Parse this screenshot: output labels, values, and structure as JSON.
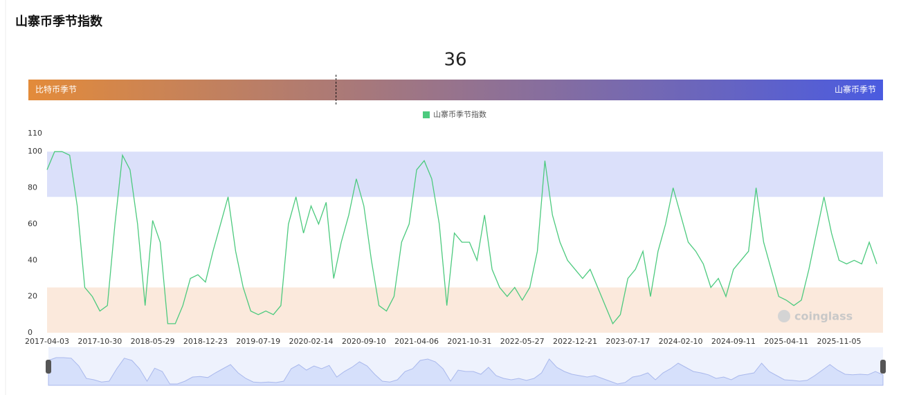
{
  "header": {
    "title": "山寨币季节指数"
  },
  "gauge": {
    "value": 36,
    "range": [
      0,
      100
    ],
    "min_label": "比特币季节",
    "max_label": "山寨币季节",
    "colors": [
      "#e38b3a",
      "#4a5be0"
    ]
  },
  "chart_data": {
    "type": "line",
    "categories": [
      "2017-04-03",
      null,
      null,
      null,
      null,
      null,
      null,
      "2017-10-30",
      null,
      null,
      null,
      null,
      null,
      null,
      "2018-05-29",
      null,
      null,
      null,
      null,
      null,
      null,
      "2018-12-23",
      null,
      null,
      null,
      null,
      null,
      null,
      "2019-07-19",
      null,
      null,
      null,
      null,
      null,
      null,
      "2020-02-14",
      null,
      null,
      null,
      null,
      null,
      null,
      "2020-09-10",
      null,
      null,
      null,
      null,
      null,
      null,
      "2021-04-06",
      null,
      null,
      null,
      null,
      null,
      null,
      "2021-10-31",
      null,
      null,
      null,
      null,
      null,
      null,
      "2022-05-27",
      null,
      null,
      null,
      null,
      null,
      null,
      "2022-12-21",
      null,
      null,
      null,
      null,
      null,
      null,
      "2023-07-17",
      null,
      null,
      null,
      null,
      null,
      null,
      "2024-02-10",
      null,
      null,
      null,
      null,
      null,
      null,
      "2024-09-11",
      null,
      null,
      null,
      null,
      null,
      null,
      "2025-04-11",
      null,
      null,
      null,
      null,
      null,
      null,
      "2025-11-05",
      null,
      null,
      null,
      null,
      null
    ],
    "series": [
      {
        "name": "山寨币季节指数",
        "color": "#4cca7e",
        "values": [
          90,
          100,
          100,
          98,
          70,
          25,
          20,
          12,
          15,
          60,
          98,
          90,
          60,
          15,
          62,
          50,
          5,
          5,
          15,
          30,
          32,
          28,
          45,
          60,
          75,
          45,
          25,
          12,
          10,
          12,
          10,
          15,
          60,
          75,
          55,
          70,
          60,
          72,
          30,
          50,
          65,
          85,
          70,
          40,
          15,
          12,
          20,
          50,
          60,
          90,
          95,
          85,
          60,
          15,
          55,
          50,
          50,
          40,
          65,
          35,
          25,
          20,
          25,
          18,
          25,
          45,
          95,
          65,
          50,
          40,
          35,
          30,
          35,
          25,
          15,
          5,
          10,
          30,
          35,
          45,
          20,
          45,
          60,
          80,
          65,
          50,
          45,
          38,
          25,
          30,
          20,
          35,
          40,
          45,
          80,
          50,
          35,
          20,
          18,
          15,
          18,
          35,
          55,
          75,
          55,
          40,
          38,
          40,
          38,
          50,
          38
        ]
      }
    ],
    "ylim": [
      0,
      110
    ],
    "yticks": [
      0,
      20,
      40,
      60,
      80,
      100,
      110
    ],
    "bands": [
      {
        "from": 75,
        "to": 100,
        "color": "#dbe0fa"
      },
      {
        "from": 0,
        "to": 25,
        "color": "#fbe9dc"
      }
    ],
    "legend": "top"
  },
  "watermark": "coinglass"
}
